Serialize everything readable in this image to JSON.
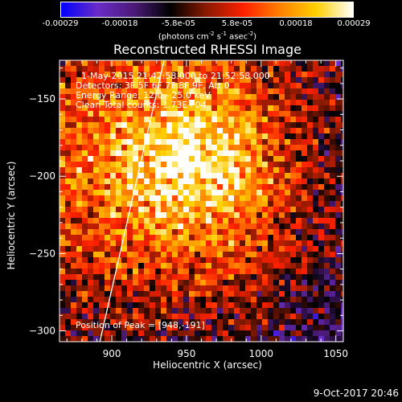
{
  "colorbar": {
    "ticks": [
      "-0.00029",
      "-0.00018",
      "-5.8e-05",
      "5.8e-05",
      "0.00018",
      "0.00029"
    ],
    "units": {
      "prefix": "(photons cm",
      "s": " s",
      "a": " asec",
      "close": ")",
      "exp1": "-2",
      "exp2": "-1",
      "exp3": "-2"
    }
  },
  "title": "Reconstructed RHESSI Image",
  "info": {
    "line1": "1-May-2015 21:42:58.000 to 21:52:58.000",
    "line2": "Detectors: 3F 5F 6F 7F 8F 9F, Att 0",
    "line3": "Energy Range: 12.0 - 25.0 keV",
    "line4": "Clean     Total counts: 1.73E+04"
  },
  "peak_text": "Position of Peak = [948,-191]",
  "date": "9-Oct-2017 20:46",
  "chart_data": {
    "type": "heatmap",
    "title": "Reconstructed RHESSI Image",
    "xlabel": "Heliocentric X (arcsec)",
    "ylabel": "Heliocentric Y (arcsec)",
    "xlim": [
      865,
      1055
    ],
    "ylim": [
      -307,
      -125
    ],
    "x_ticks": [
      900,
      950,
      1000,
      1050
    ],
    "y_ticks": [
      -150,
      -200,
      -250,
      -300
    ],
    "value_range": [
      -0.00029,
      0.00029
    ],
    "peak": [
      948,
      -191
    ],
    "limb_line": {
      "x": [
        892,
        935
      ],
      "y": [
        -307,
        -125
      ]
    },
    "colormap": [
      "#0000ff",
      "#6a2cc8",
      "#4b1a78",
      "#000000",
      "#8b1a00",
      "#ff2000",
      "#ff8000",
      "#ffd000",
      "#ffffff"
    ]
  }
}
